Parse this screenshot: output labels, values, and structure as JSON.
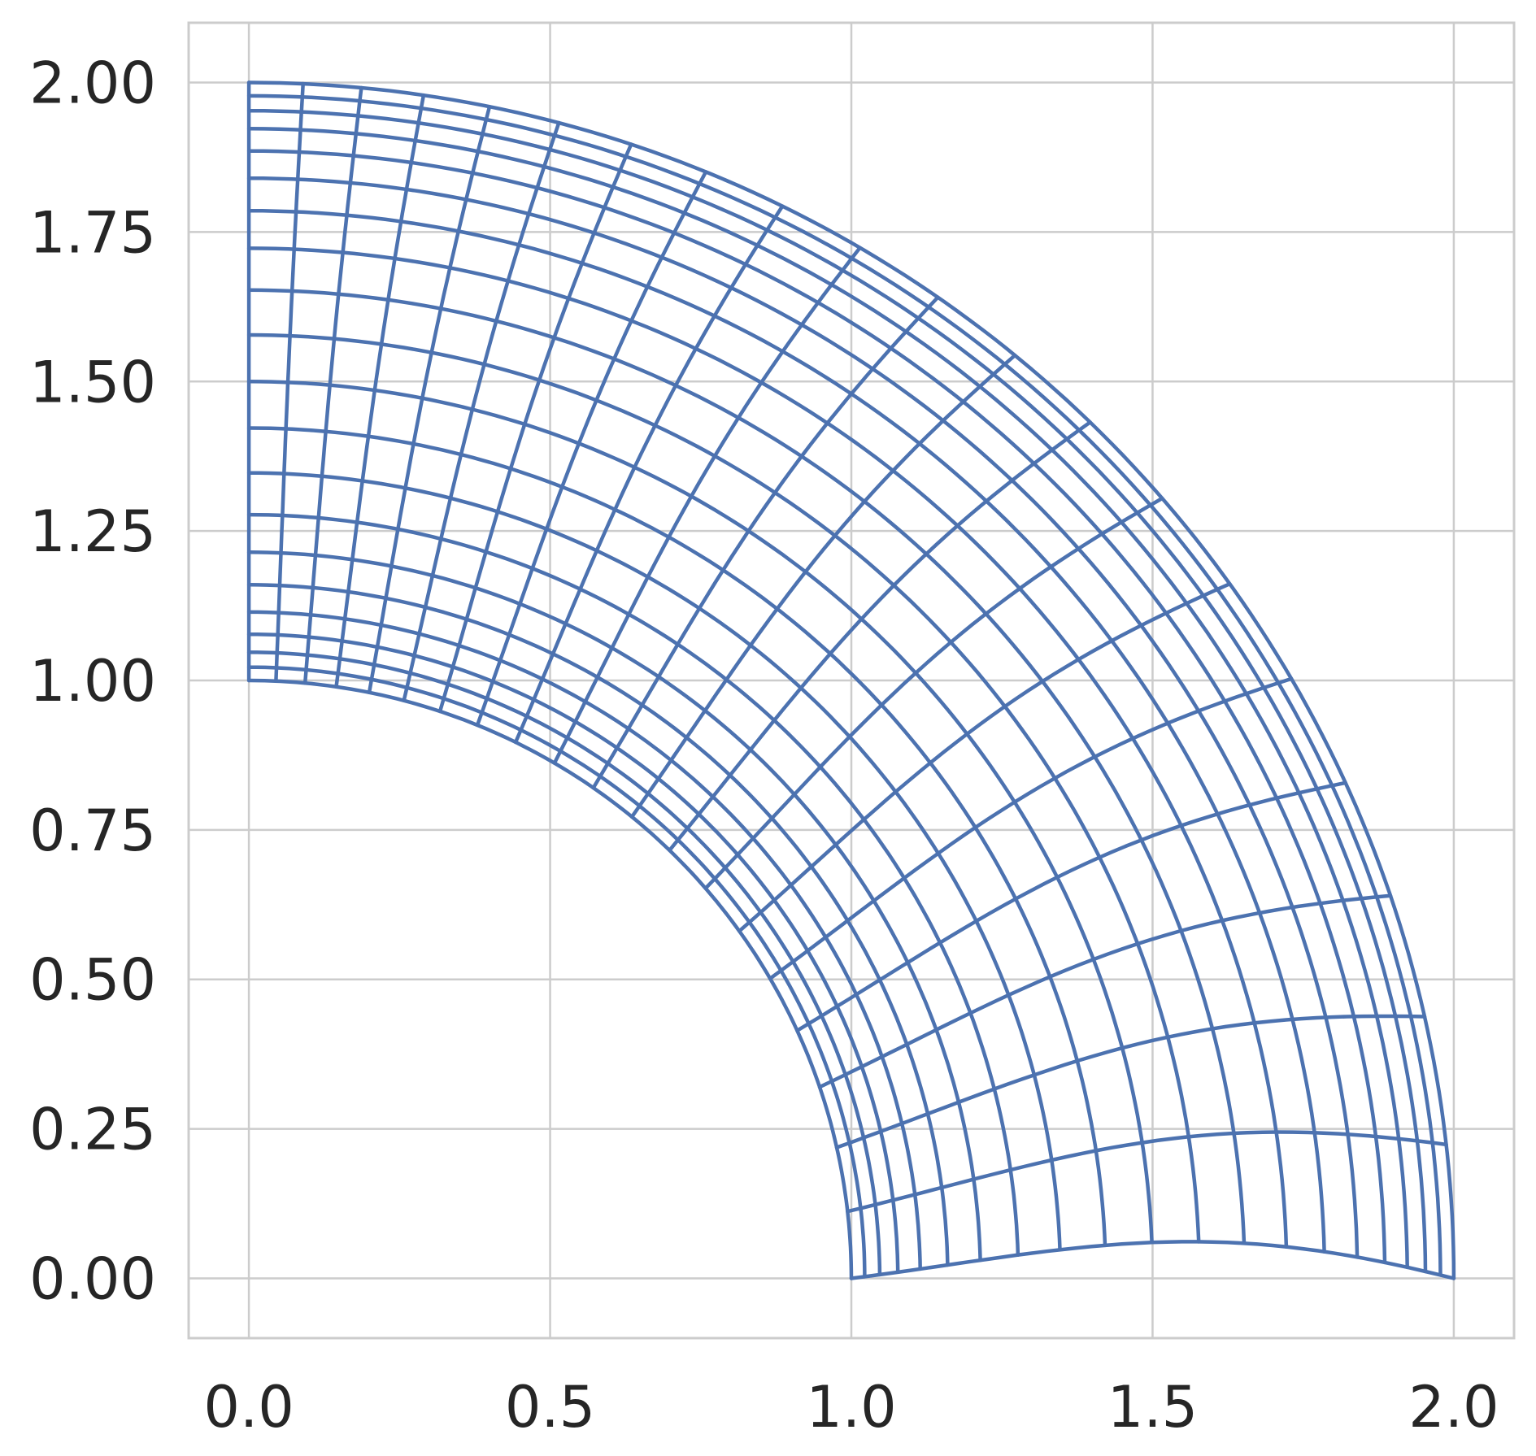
{
  "chart_data": {
    "type": "line",
    "description_kind": "curvilinear mesh (quarter annulus)",
    "title": "",
    "xlabel": "",
    "ylabel": "",
    "xlim": [
      -0.1,
      2.1
    ],
    "ylim": [
      -0.1,
      2.1
    ],
    "x_ticks": [
      0.0,
      0.5,
      1.0,
      1.5,
      2.0
    ],
    "x_tick_labels": [
      "0.0",
      "0.5",
      "1.0",
      "1.5",
      "2.0"
    ],
    "y_ticks": [
      0.0,
      0.25,
      0.5,
      0.75,
      1.0,
      1.25,
      1.5,
      1.75,
      2.0
    ],
    "y_tick_labels": [
      "0.00",
      "0.25",
      "0.50",
      "0.75",
      "1.00",
      "1.25",
      "1.50",
      "1.75",
      "2.00"
    ],
    "grid": true,
    "mesh": {
      "inner_radius": 1.0,
      "outer_radius": 2.0,
      "angle_start_deg": 0,
      "angle_end_deg": 90,
      "radial_lines": 21,
      "arc_lines": 21,
      "radial_spacing": "clustered toward inner and outer radius",
      "angular_spacing": "finer near 90 degrees, coarser near 0 degrees",
      "slight_twist": true
    },
    "colors": {
      "mesh": "#4c72b0",
      "grid": "#cccccc",
      "axes_frame": "#cccccc",
      "tick_text": "#262626"
    }
  }
}
